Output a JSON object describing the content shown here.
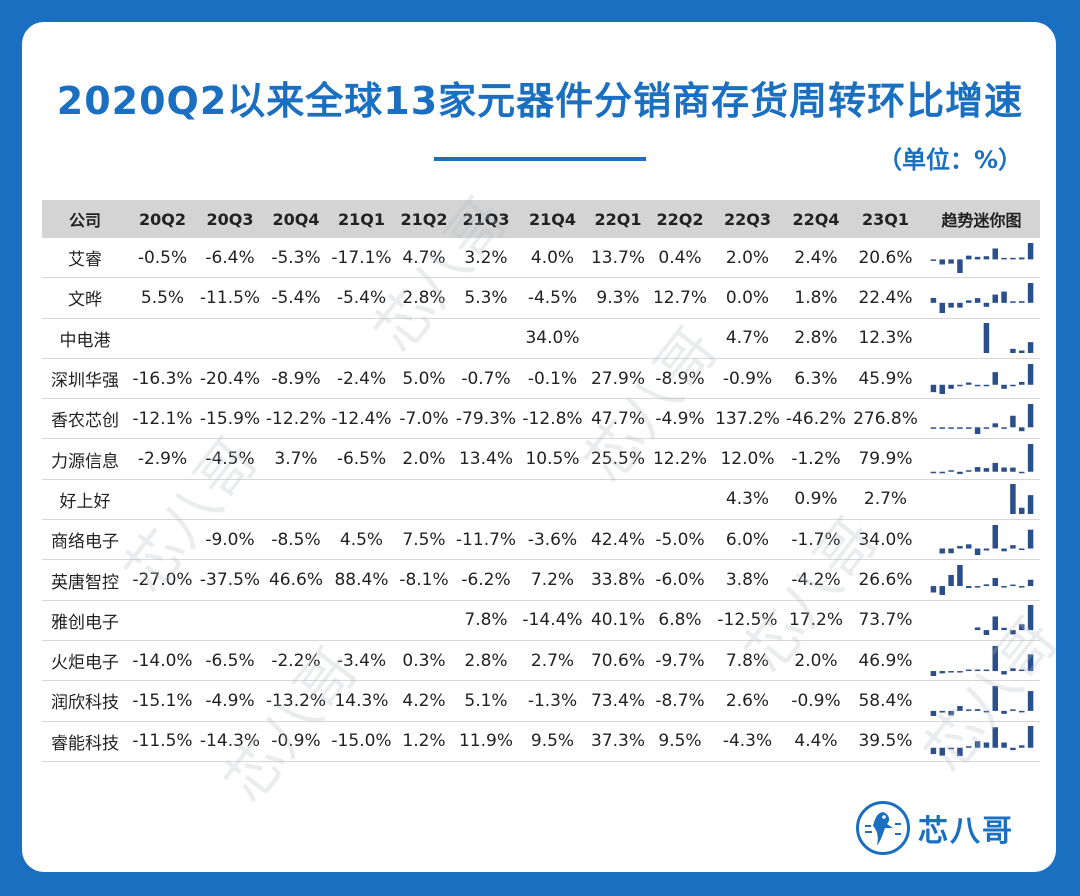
{
  "title": "2020Q2以来全球13家元器件分销商存货周转环比增速",
  "unit": "（单位：%）",
  "logo_text": "芯八哥",
  "watermark_text": "芯八哥",
  "colors": {
    "accent": "#1a6fc0",
    "bar": "#2a4f8a",
    "header_bg": "#d4d4d4"
  },
  "chart_data": {
    "type": "table",
    "columns": [
      "公司",
      "20Q2",
      "20Q3",
      "20Q4",
      "21Q1",
      "21Q2",
      "21Q3",
      "21Q4",
      "22Q1",
      "22Q2",
      "22Q3",
      "22Q4",
      "23Q1",
      "趋势迷你图"
    ],
    "rows": [
      {
        "company": "艾睿",
        "values": [
          "-0.5%",
          "-6.4%",
          "-5.3%",
          "-17.1%",
          "4.7%",
          "3.2%",
          "4.0%",
          "13.7%",
          "0.4%",
          "2.0%",
          "2.4%",
          "20.6%"
        ]
      },
      {
        "company": "文晔",
        "values": [
          "5.5%",
          "-11.5%",
          "-5.4%",
          "-5.4%",
          "2.8%",
          "5.3%",
          "-4.5%",
          "9.3%",
          "12.7%",
          "0.0%",
          "1.8%",
          "22.4%"
        ]
      },
      {
        "company": "中电港",
        "values": [
          "",
          "",
          "",
          "",
          "",
          "",
          "34.0%",
          "",
          "",
          "4.7%",
          "2.8%",
          "12.3%"
        ]
      },
      {
        "company": "深圳华强",
        "values": [
          "-16.3%",
          "-20.4%",
          "-8.9%",
          "-2.4%",
          "5.0%",
          "-0.7%",
          "-0.1%",
          "27.9%",
          "-8.9%",
          "-0.9%",
          "6.3%",
          "45.9%"
        ]
      },
      {
        "company": "香农芯创",
        "values": [
          "-12.1%",
          "-15.9%",
          "-12.2%",
          "-12.4%",
          "-7.0%",
          "-79.3%",
          "-12.8%",
          "47.7%",
          "-4.9%",
          "137.2%",
          "-46.2%",
          "276.8%"
        ]
      },
      {
        "company": "力源信息",
        "values": [
          "-2.9%",
          "-4.5%",
          "3.7%",
          "-6.5%",
          "2.0%",
          "13.4%",
          "10.5%",
          "25.5%",
          "12.2%",
          "12.0%",
          "-1.2%",
          "79.9%"
        ]
      },
      {
        "company": "好上好",
        "values": [
          "",
          "",
          "",
          "",
          "",
          "",
          "",
          "",
          "",
          "4.3%",
          "0.9%",
          "2.7%"
        ]
      },
      {
        "company": "商络电子",
        "values": [
          "",
          "-9.0%",
          "-8.5%",
          "4.5%",
          "7.5%",
          "-11.7%",
          "-3.6%",
          "42.4%",
          "-5.0%",
          "6.0%",
          "-1.7%",
          "34.0%"
        ]
      },
      {
        "company": "英唐智控",
        "values": [
          "-27.0%",
          "-37.5%",
          "46.6%",
          "88.4%",
          "-8.1%",
          "-6.2%",
          "7.2%",
          "33.8%",
          "-6.0%",
          "3.8%",
          "-4.2%",
          "26.6%"
        ]
      },
      {
        "company": "雅创电子",
        "values": [
          "",
          "",
          "",
          "",
          "",
          "7.8%",
          "-14.4%",
          "40.1%",
          "6.8%",
          "-12.5%",
          "17.2%",
          "73.7%"
        ]
      },
      {
        "company": "火炬电子",
        "values": [
          "-14.0%",
          "-6.5%",
          "-2.2%",
          "-3.4%",
          "0.3%",
          "2.8%",
          "2.7%",
          "70.6%",
          "-9.7%",
          "7.8%",
          "2.0%",
          "46.9%"
        ]
      },
      {
        "company": "润欣科技",
        "values": [
          "-15.1%",
          "-4.9%",
          "-13.2%",
          "14.3%",
          "4.2%",
          "5.1%",
          "-1.3%",
          "73.4%",
          "-8.7%",
          "2.6%",
          "-0.9%",
          "58.4%"
        ]
      },
      {
        "company": "睿能科技",
        "values": [
          "-11.5%",
          "-14.3%",
          "-0.9%",
          "-15.0%",
          "1.2%",
          "11.9%",
          "9.5%",
          "37.3%",
          "9.5%",
          "-4.3%",
          "4.4%",
          "39.5%"
        ]
      }
    ]
  }
}
